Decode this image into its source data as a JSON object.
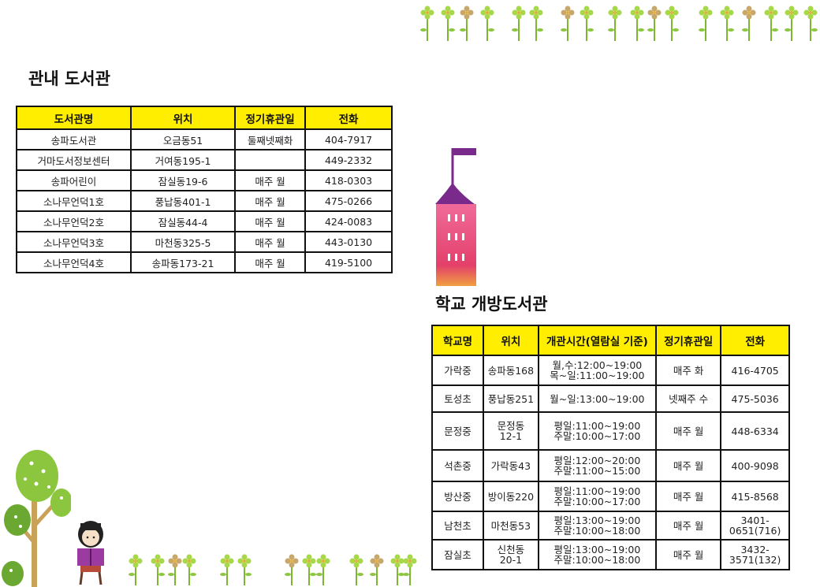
{
  "section1": {
    "title": "관내 도서관",
    "headers": [
      "도서관명",
      "위치",
      "정기휴관일",
      "전화"
    ],
    "rows": [
      [
        "송파도서관",
        "오금동51",
        "둘째넷째화",
        "404-7917"
      ],
      [
        "거마도서정보센터",
        "거여동195-1",
        "",
        "449-2332"
      ],
      [
        "송파어린이",
        "잠실동19-6",
        "매주 월",
        "418-0303"
      ],
      [
        "소나무언덕1호",
        "풍납동401-1",
        "매주 월",
        "475-0266"
      ],
      [
        "소나무언덕2호",
        "잠실동44-4",
        "매주 월",
        "424-0083"
      ],
      [
        "소나무언덕3호",
        "마천동325-5",
        "매주 월",
        "443-0130"
      ],
      [
        "소나무언덕4호",
        "송파동173-21",
        "매주 월",
        "419-5100"
      ]
    ]
  },
  "section2": {
    "title": "학교 개방도서관",
    "headers": [
      "학교명",
      "위치",
      "개관시간(열람실 기준)",
      "정기휴관일",
      "전화"
    ],
    "rows": [
      [
        "가락중",
        "송파동168",
        "월,수:12:00~19:00\n목~일:11:00~19:00",
        "매주 화",
        "416-4705"
      ],
      [
        "토성초",
        "풍납동251",
        "월~일:13:00~19:00",
        "넷째주 수",
        "475-5036"
      ],
      [
        "문정중",
        "문정동\n12-1",
        "평일:11:00~19:00\n주말:10:00~17:00",
        "매주 월",
        "448-6334"
      ],
      [
        "석촌중",
        "가락동43",
        "평일:12:00~20:00\n주말:11:00~15:00",
        "매주 월",
        "400-9098"
      ],
      [
        "방산중",
        "방이동220",
        "평일:11:00~19:00\n주말:10:00~17:00",
        "매주 월",
        "415-8568"
      ],
      [
        "남천초",
        "마천동53",
        "평일:13:00~19:00\n주말:10:00~18:00",
        "매주 월",
        "3401-\n0651(716)"
      ],
      [
        "잠실초",
        "신천동\n20-1",
        "평일:13:00~19:00\n주말:10:00~18:00",
        "매주 월",
        "3432-\n3571(132)"
      ]
    ],
    "row_heights": [
      38,
      34,
      48,
      40,
      38,
      36,
      38
    ]
  },
  "colors": {
    "header_bg": "#ffee00",
    "tower_body": "#e8507a",
    "tower_roof": "#7a2a8a",
    "leaf_green": "#9bd43a"
  },
  "icons": [
    "flower-border-icon",
    "tower-illustration-icon",
    "tree-illustration-icon",
    "girl-reading-illustration-icon"
  ]
}
